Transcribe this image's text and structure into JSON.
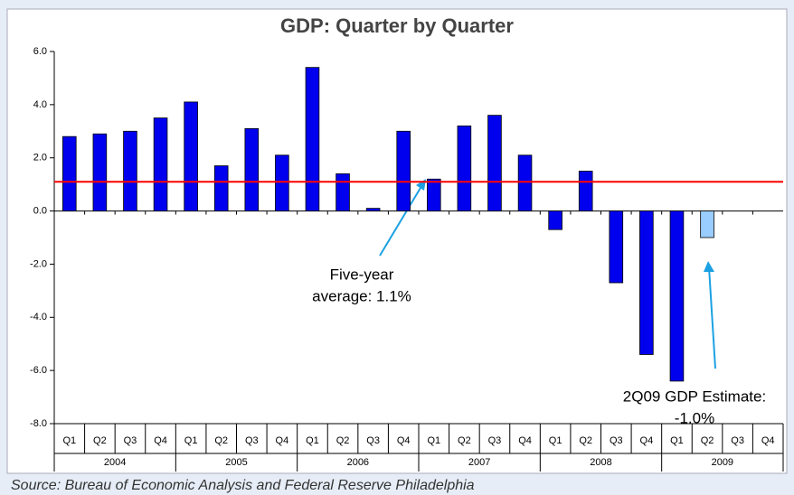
{
  "chart_data": {
    "type": "bar",
    "title": "GDP: Quarter by Quarter",
    "categories": [
      "Q1",
      "Q2",
      "Q3",
      "Q4",
      "Q1",
      "Q2",
      "Q3",
      "Q4",
      "Q1",
      "Q2",
      "Q3",
      "Q4",
      "Q1",
      "Q2",
      "Q3",
      "Q4",
      "Q1",
      "Q2",
      "Q3",
      "Q4",
      "Q1",
      "Q2",
      "Q3",
      "Q4"
    ],
    "year_groups": [
      "2004",
      "2005",
      "2006",
      "2007",
      "2008",
      "2009"
    ],
    "values": [
      2.8,
      2.9,
      3.0,
      3.5,
      4.1,
      1.7,
      3.1,
      2.1,
      5.4,
      1.4,
      0.1,
      3.0,
      1.2,
      3.2,
      3.6,
      2.1,
      -0.7,
      1.5,
      -2.7,
      -5.4,
      -6.4,
      -1.0,
      null,
      null
    ],
    "colors": [
      "#0000ee",
      "#0000ee",
      "#0000ee",
      "#0000ee",
      "#0000ee",
      "#0000ee",
      "#0000ee",
      "#0000ee",
      "#0000ee",
      "#0000ee",
      "#0000ee",
      "#0000ee",
      "#0000ee",
      "#0000ee",
      "#0000ee",
      "#0000ee",
      "#0000ee",
      "#0000ee",
      "#0000ee",
      "#0000ee",
      "#0000ee",
      "#99ccff",
      null,
      null
    ],
    "ylim": [
      -8,
      6
    ],
    "yticks": [
      {
        "value": -8,
        "label": "-8.0"
      },
      {
        "value": -6,
        "label": "-6.0"
      },
      {
        "value": -4,
        "label": "-4.0"
      },
      {
        "value": -2,
        "label": "-2.0"
      },
      {
        "value": 0,
        "label": "0.0"
      },
      {
        "value": 2,
        "label": "2.0"
      },
      {
        "value": 4,
        "label": "4.0"
      },
      {
        "value": 6,
        "label": "6.0"
      }
    ],
    "reference_line": {
      "value": 1.1,
      "color": "#ff0000"
    },
    "annotations": [
      {
        "lines": [
          "Five-year",
          "average: 1.1%"
        ]
      },
      {
        "lines": [
          "2Q09 GDP Estimate:",
          "-1.0%"
        ]
      }
    ],
    "source": "Source: Bureau of Economic Analysis and Federal Reserve Philadelphia"
  }
}
